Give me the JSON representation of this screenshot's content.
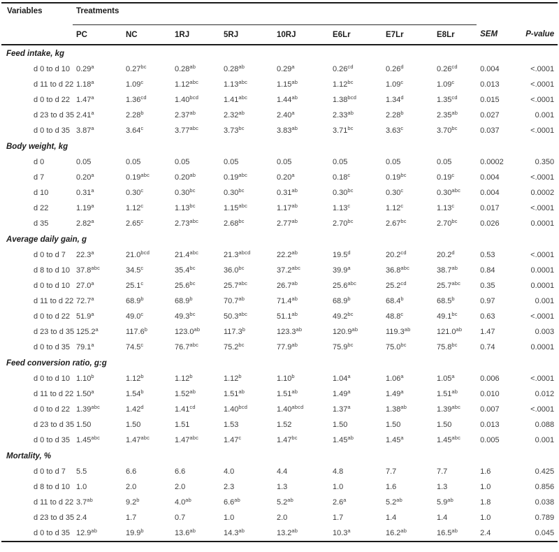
{
  "table": {
    "header": {
      "variables_label": "Variables",
      "treatments_label": "Treatments",
      "treatment_columns": [
        "PC",
        "NC",
        "1RJ",
        "5RJ",
        "10RJ",
        "E6Lr",
        "E7Lr",
        "E8Lr"
      ],
      "sem_label": "SEM",
      "pvalue_label": "P-value"
    },
    "sections": [
      {
        "title": "Feed intake, kg",
        "rows": [
          {
            "label": "d 0 to d 10",
            "values": [
              "0.29^a",
              "0.27^bc",
              "0.28^ab",
              "0.28^ab",
              "0.29^a",
              "0.26^cd",
              "0.26^d",
              "0.26^cd"
            ],
            "sem": "0.004",
            "p": "<.0001"
          },
          {
            "label": "d 11 to d 22",
            "values": [
              "1.18^a",
              "1.09^c",
              "1.12^abc",
              "1.13^abc",
              "1.15^ab",
              "1.12^bc",
              "1.09^c",
              "1.09^c"
            ],
            "sem": "0.013",
            "p": "<.0001"
          },
          {
            "label": "d 0 to d 22",
            "values": [
              "1.47^a",
              "1.36^cd",
              "1.40^bcd",
              "1.41^abc",
              "1.44^ab",
              "1.38^bcd",
              "1.34^d",
              "1.35^cd"
            ],
            "sem": "0.015",
            "p": "<.0001"
          },
          {
            "label": "d 23 to d 35",
            "values": [
              "2.41^a",
              "2.28^b",
              "2.37^ab",
              "2.32^ab",
              "2.40^a",
              "2.33^ab",
              "2.28^b",
              "2.35^ab"
            ],
            "sem": "0.027",
            "p": "0.001"
          },
          {
            "label": "d 0 to d 35",
            "values": [
              "3.87^a",
              "3.64^c",
              "3.77^abc",
              "3.73^bc",
              "3.83^ab",
              "3.71^bc",
              "3.63^c",
              "3.70^bc"
            ],
            "sem": "0.037",
            "p": "<.0001"
          }
        ]
      },
      {
        "title": "Body weight, kg",
        "rows": [
          {
            "label": "d 0",
            "values": [
              "0.05",
              "0.05",
              "0.05",
              "0.05",
              "0.05",
              "0.05",
              "0.05",
              "0.05"
            ],
            "sem": "0.0002",
            "p": "0.350"
          },
          {
            "label": "d 7",
            "values": [
              "0.20^a",
              "0.19^abc",
              "0.20^ab",
              "0.19^abc",
              "0.20^a",
              "0.18^c",
              "0.19^bc",
              "0.19^c"
            ],
            "sem": "0.004",
            "p": "<.0001"
          },
          {
            "label": "d 10",
            "values": [
              "0.31^a",
              "0.30^c",
              "0.30^bc",
              "0.30^bc",
              "0.31^ab",
              "0.30^bc",
              "0.30^c",
              "0.30^abc"
            ],
            "sem": "0.004",
            "p": "0.0002"
          },
          {
            "label": "d 22",
            "values": [
              "1.19^a",
              "1.12^c",
              "1.13^bc",
              "1.15^abc",
              "1.17^ab",
              "1.13^c",
              "1.12^c",
              "1.13^c"
            ],
            "sem": "0.017",
            "p": "<.0001"
          },
          {
            "label": "d 35",
            "values": [
              "2.82^a",
              "2.65^c",
              "2.73^abc",
              "2.68^bc",
              "2.77^ab",
              "2.70^bc",
              "2.67^bc",
              "2.70^bc"
            ],
            "sem": "0.026",
            "p": "0.0001"
          }
        ]
      },
      {
        "title": "Average daily gain, g",
        "rows": [
          {
            "label": "d 0 to d 7",
            "values": [
              "22.3^a",
              "21.0^bcd",
              "21.4^abc",
              "21.3^abcd",
              "22.2^ab",
              "19.5^d",
              "20.2^cd",
              "20.2^d"
            ],
            "sem": "0.53",
            "p": "<.0001"
          },
          {
            "label": "d 8 to d 10",
            "values": [
              "37.8^abc",
              "34.5^c",
              "35.4^bc",
              "36.0^bc",
              "37.2^abc",
              "39.9^a",
              "36.8^abc",
              "38.7^ab"
            ],
            "sem": "0.84",
            "p": "0.0001"
          },
          {
            "label": "d 0 to d 10",
            "values": [
              "27.0^a",
              "25.1^c",
              "25.6^bc",
              "25.7^abc",
              "26.7^ab",
              "25.6^abc",
              "25.2^cd",
              "25.7^abc"
            ],
            "sem": "0.35",
            "p": "0.0001"
          },
          {
            "label": "d 11 to d 22",
            "values": [
              "72.7^a",
              "68.9^b",
              "68.9^b",
              "70.7^ab",
              "71.4^ab",
              "68.9^b",
              "68.4^b",
              "68.5^b"
            ],
            "sem": "0.97",
            "p": "0.001"
          },
          {
            "label": "d 0 to d 22",
            "values": [
              "51.9^a",
              "49.0^c",
              "49.3^bc",
              "50.3^abc",
              "51.1^ab",
              "49.2^bc",
              "48.8^c",
              "49.1^bc"
            ],
            "sem": "0.63",
            "p": "<.0001"
          },
          {
            "label": "d 23 to d 35",
            "values": [
              "125.2^a",
              "117.6^b",
              "123.0^ab",
              "117.3^b",
              "123.3^ab",
              "120.9^ab",
              "119.3^ab",
              "121.0^ab"
            ],
            "sem": "1.47",
            "p": "0.003"
          },
          {
            "label": "d 0 to d 35",
            "values": [
              "79.1^a",
              "74.5^c",
              "76.7^abc",
              "75.2^bc",
              "77.9^ab",
              "75.9^bc",
              "75.0^bc",
              "75.8^bc"
            ],
            "sem": "0.74",
            "p": "0.0001"
          }
        ]
      },
      {
        "title": "Feed conversion ratio, g:g",
        "rows": [
          {
            "label": "d 0 to d 10",
            "values": [
              "1.10^b",
              "1.12^b",
              "1.12^b",
              "1.12^b",
              "1.10^b",
              "1.04^a",
              "1.06^a",
              "1.05^a"
            ],
            "sem": "0.006",
            "p": "<.0001"
          },
          {
            "label": "d 11 to d 22",
            "values": [
              "1.50^a",
              "1.54^b",
              "1.52^ab",
              "1.51^ab",
              "1.51^ab",
              "1.49^a",
              "1.49^a",
              "1.51^ab"
            ],
            "sem": "0.010",
            "p": "0.012"
          },
          {
            "label": "d 0 to d 22",
            "values": [
              "1.39^abc",
              "1.42^d",
              "1.41^cd",
              "1.40^bcd",
              "1.40^abcd",
              "1.37^a",
              "1.38^ab",
              "1.39^abc"
            ],
            "sem": "0.007",
            "p": "<.0001"
          },
          {
            "label": "d 23 to d 35",
            "values": [
              "1.50",
              "1.50",
              "1.51",
              "1.53",
              "1.52",
              "1.50",
              "1.50",
              "1.50"
            ],
            "sem": "0.013",
            "p": "0.088"
          },
          {
            "label": "d 0 to d 35",
            "values": [
              "1.45^abc",
              "1.47^abc",
              "1.47^abc",
              "1.47^c",
              "1.47^bc",
              "1.45^ab",
              "1.45^a",
              "1.45^abc"
            ],
            "sem": "0.005",
            "p": "0.001"
          }
        ]
      },
      {
        "title": "Mortality, %",
        "rows": [
          {
            "label": "d 0 to d 7",
            "values": [
              "5.5",
              "6.6",
              "6.6",
              "4.0",
              "4.4",
              "4.8",
              "7.7",
              "7.7"
            ],
            "sem": "1.6",
            "p": "0.425"
          },
          {
            "label": "d 8 to d 10",
            "values": [
              "1.0",
              "2.0",
              "2.0",
              "2.3",
              "1.3",
              "1.0",
              "1.6",
              "1.3"
            ],
            "sem": "1.0",
            "p": "0.856"
          },
          {
            "label": "d 11 to d 22",
            "values": [
              "3.7^ab",
              "9.2^b",
              "4.0^ab",
              "6.6^ab",
              "5.2^ab",
              "2.6^a",
              "5.2^ab",
              "5.9^ab"
            ],
            "sem": "1.8",
            "p": "0.038"
          },
          {
            "label": "d 23 to d 35",
            "values": [
              "2.4",
              "1.7",
              "0.7",
              "1.0",
              "2.0",
              "1.7",
              "1.4",
              "1.4"
            ],
            "sem": "1.0",
            "p": "0.789"
          },
          {
            "label": "d 0 to d 35",
            "values": [
              "12.9^ab",
              "19.9^b",
              "13.6^ab",
              "14.3^ab",
              "13.2^ab",
              "10.3^a",
              "16.2^ab",
              "16.5^ab"
            ],
            "sem": "2.4",
            "p": "0.045"
          }
        ]
      }
    ]
  }
}
